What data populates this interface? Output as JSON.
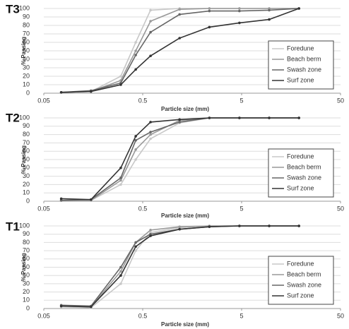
{
  "chart_data": [
    {
      "type": "line",
      "title": "T3",
      "x_label": "Particle size (mm)",
      "y_label": "% Passing",
      "x": [
        0.075,
        0.15,
        0.3,
        0.425,
        0.6,
        1.18,
        2.36,
        4.75,
        9.5,
        19
      ],
      "xlim": [
        0.05,
        50
      ],
      "xticks": [
        0.05,
        0.5,
        5,
        50
      ],
      "x_log": true,
      "ylim": [
        0,
        100
      ],
      "yticks": [
        0,
        10,
        20,
        30,
        40,
        50,
        60,
        70,
        80,
        90,
        100
      ],
      "grid": true,
      "legend": "lower right",
      "series": [
        {
          "name": "Foredune",
          "color": "#c8c8c8",
          "values": [
            1,
            2,
            20,
            60,
            98,
            100,
            100,
            100,
            100,
            100
          ]
        },
        {
          "name": "Beach berm",
          "color": "#999999",
          "values": [
            1,
            2,
            15,
            50,
            85,
            99,
            100,
            100,
            100,
            100
          ]
        },
        {
          "name": "Swash zone",
          "color": "#666666",
          "values": [
            1,
            3,
            12,
            45,
            72,
            93,
            97,
            97,
            98,
            100
          ]
        },
        {
          "name": "Surf zone",
          "color": "#333333",
          "values": [
            1,
            2,
            10,
            28,
            44,
            65,
            78,
            83,
            87,
            100
          ]
        }
      ]
    },
    {
      "type": "line",
      "title": "T2",
      "x_label": "Particle size (mm)",
      "y_label": "% Passing",
      "x": [
        0.075,
        0.15,
        0.3,
        0.425,
        0.6,
        1.18,
        2.36,
        4.75,
        9.5,
        19
      ],
      "xlim": [
        0.05,
        50
      ],
      "xticks": [
        0.05,
        0.5,
        5,
        50
      ],
      "x_log": true,
      "ylim": [
        0,
        100
      ],
      "yticks": [
        0,
        10,
        20,
        30,
        40,
        50,
        60,
        70,
        80,
        90,
        100
      ],
      "grid": true,
      "legend": "lower right",
      "series": [
        {
          "name": "Foredune",
          "color": "#c8c8c8",
          "values": [
            1,
            1,
            20,
            50,
            75,
            94,
            100,
            100,
            100,
            100
          ]
        },
        {
          "name": "Beach berm",
          "color": "#999999",
          "values": [
            1,
            1,
            25,
            62,
            80,
            97,
            100,
            100,
            100,
            100
          ]
        },
        {
          "name": "Swash zone",
          "color": "#666666",
          "values": [
            1,
            2,
            28,
            73,
            83,
            95,
            100,
            100,
            100,
            100
          ]
        },
        {
          "name": "Surf zone",
          "color": "#333333",
          "values": [
            3,
            2,
            40,
            78,
            95,
            98,
            100,
            100,
            100,
            100
          ]
        }
      ]
    },
    {
      "type": "line",
      "title": "T1",
      "x_label": "Particle size (mm)",
      "y_label": "% Passing",
      "x": [
        0.075,
        0.15,
        0.3,
        0.425,
        0.6,
        1.18,
        2.36,
        4.75,
        9.5,
        19
      ],
      "xlim": [
        0.05,
        50
      ],
      "xticks": [
        0.05,
        0.5,
        5,
        50
      ],
      "x_log": true,
      "ylim": [
        0,
        100
      ],
      "yticks": [
        0,
        10,
        20,
        30,
        40,
        50,
        60,
        70,
        80,
        90,
        100
      ],
      "grid": true,
      "legend": "lower right",
      "series": [
        {
          "name": "Foredune",
          "color": "#c8c8c8",
          "values": [
            2,
            1,
            30,
            70,
            92,
            98,
            100,
            100,
            100,
            100
          ]
        },
        {
          "name": "Beach berm",
          "color": "#999999",
          "values": [
            3,
            2,
            45,
            80,
            95,
            99,
            100,
            100,
            100,
            100
          ]
        },
        {
          "name": "Swash zone",
          "color": "#666666",
          "values": [
            4,
            3,
            50,
            80,
            90,
            96,
            99,
            100,
            100,
            100
          ]
        },
        {
          "name": "Surf zone",
          "color": "#333333",
          "values": [
            3,
            2,
            40,
            75,
            88,
            96,
            99,
            100,
            100,
            100
          ]
        }
      ]
    }
  ]
}
